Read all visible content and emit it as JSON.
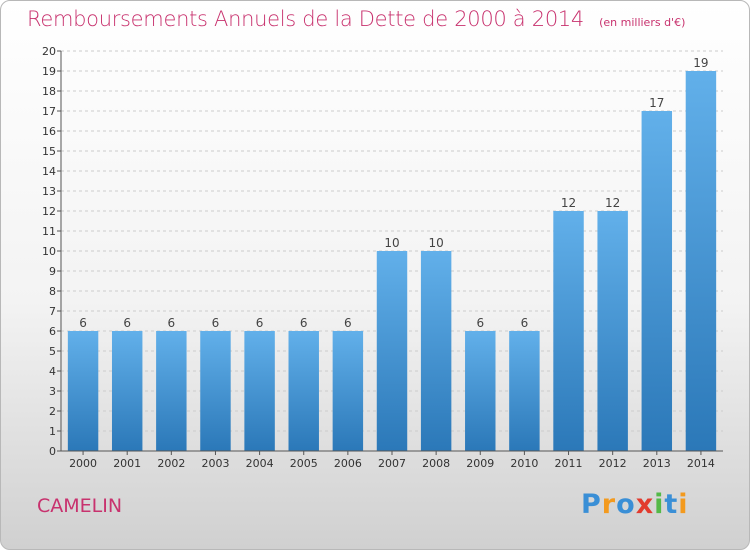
{
  "title": "Remboursements Annuels de la Dette de 2000 à 2014",
  "unit": "(en milliers d'€)",
  "city": "CAMELIN",
  "logo": {
    "letters": [
      "P",
      "r",
      "o",
      "x",
      "i",
      "t",
      "i"
    ],
    "colors": [
      "#3a8fd6",
      "#f39a1e",
      "#3a8fd6",
      "#e23b2e",
      "#54b948",
      "#3a8fd6",
      "#f39a1e"
    ]
  },
  "colors": {
    "title": "#c8326e",
    "bar_top": "#62b0ea",
    "bar_bottom": "#2b78b8",
    "grid": "#cccccc"
  },
  "chart_data": {
    "type": "bar",
    "categories": [
      "2000",
      "2001",
      "2002",
      "2003",
      "2004",
      "2005",
      "2006",
      "2007",
      "2008",
      "2009",
      "2010",
      "2011",
      "2012",
      "2013",
      "2014"
    ],
    "values": [
      6,
      6,
      6,
      6,
      6,
      6,
      6,
      10,
      10,
      6,
      6,
      12,
      12,
      17,
      19
    ],
    "yticks": [
      "0",
      "1",
      "2",
      "3",
      "4",
      "5",
      "6",
      "7",
      "8",
      "9",
      "10",
      "11",
      "12",
      "13",
      "14",
      "15",
      "16",
      "17",
      "18",
      "19",
      "20"
    ],
    "ylim": [
      0,
      20
    ],
    "grid": true,
    "xlabel": "",
    "ylabel": ""
  }
}
